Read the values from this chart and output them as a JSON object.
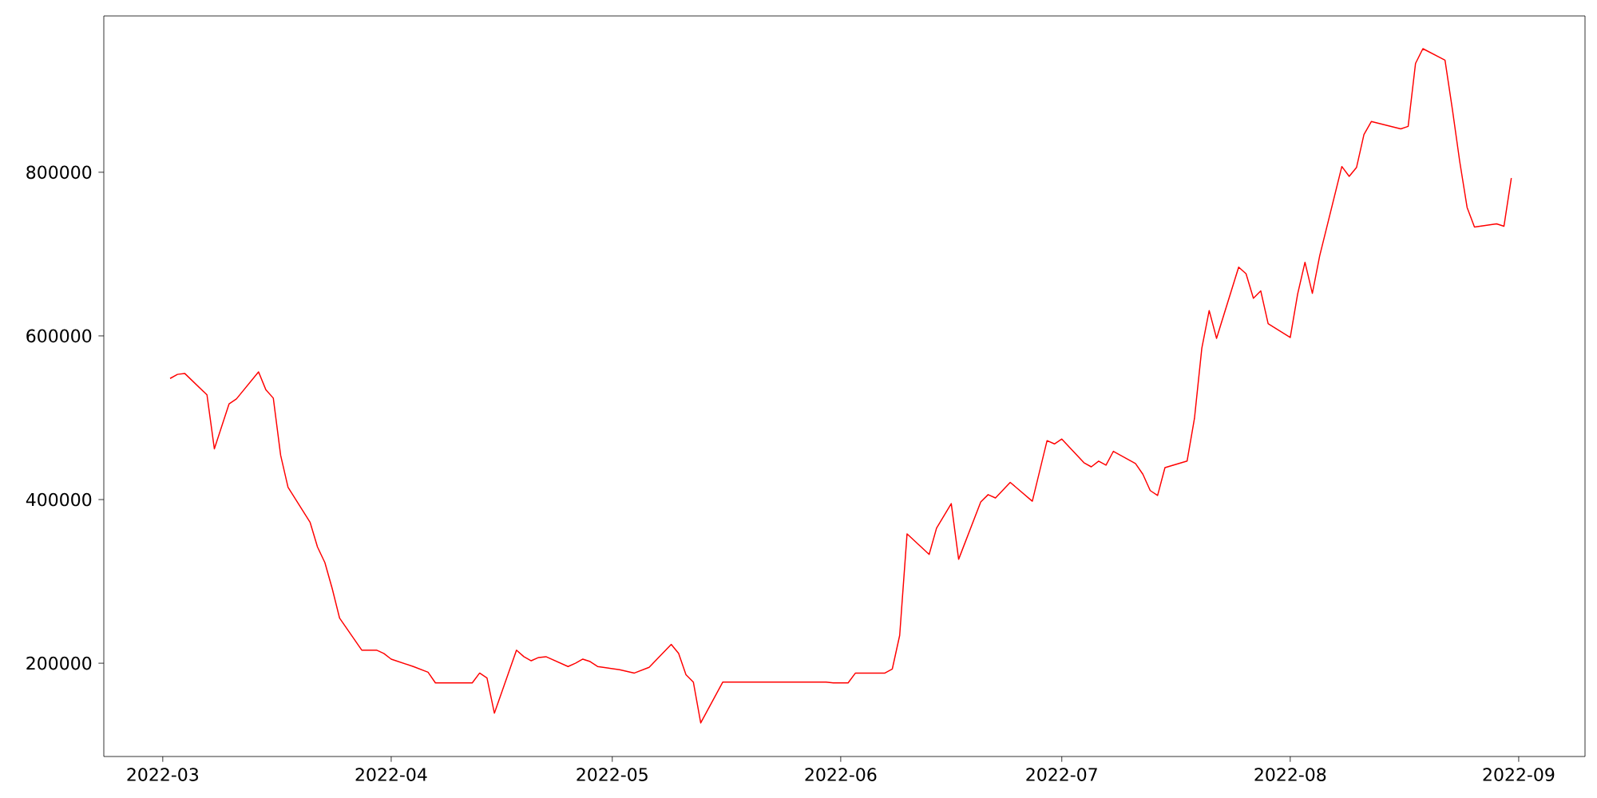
{
  "chart_data": {
    "type": "line",
    "x": [
      "2022-03-02",
      "2022-03-03",
      "2022-03-04",
      "2022-03-07",
      "2022-03-08",
      "2022-03-10",
      "2022-03-11",
      "2022-03-14",
      "2022-03-15",
      "2022-03-16",
      "2022-03-17",
      "2022-03-18",
      "2022-03-21",
      "2022-03-22",
      "2022-03-23",
      "2022-03-24",
      "2022-03-25",
      "2022-03-28",
      "2022-03-30",
      "2022-03-31",
      "2022-04-01",
      "2022-04-04",
      "2022-04-06",
      "2022-04-07",
      "2022-04-12",
      "2022-04-13",
      "2022-04-14",
      "2022-04-15",
      "2022-04-18",
      "2022-04-19",
      "2022-04-20",
      "2022-04-21",
      "2022-04-22",
      "2022-04-25",
      "2022-04-26",
      "2022-04-27",
      "2022-04-28",
      "2022-04-29",
      "2022-05-02",
      "2022-05-04",
      "2022-05-06",
      "2022-05-09",
      "2022-05-10",
      "2022-05-11",
      "2022-05-12",
      "2022-05-13",
      "2022-05-16",
      "2022-05-30",
      "2022-05-31",
      "2022-06-02",
      "2022-06-03",
      "2022-06-07",
      "2022-06-08",
      "2022-06-09",
      "2022-06-10",
      "2022-06-13",
      "2022-06-14",
      "2022-06-16",
      "2022-06-17",
      "2022-06-20",
      "2022-06-21",
      "2022-06-22",
      "2022-06-24",
      "2022-06-27",
      "2022-06-29",
      "2022-06-30",
      "2022-07-01",
      "2022-07-04",
      "2022-07-05",
      "2022-07-06",
      "2022-07-07",
      "2022-07-08",
      "2022-07-11",
      "2022-07-12",
      "2022-07-13",
      "2022-07-14",
      "2022-07-15",
      "2022-07-18",
      "2022-07-19",
      "2022-07-20",
      "2022-07-21",
      "2022-07-22",
      "2022-07-25",
      "2022-07-26",
      "2022-07-27",
      "2022-07-28",
      "2022-07-29",
      "2022-08-01",
      "2022-08-02",
      "2022-08-03",
      "2022-08-04",
      "2022-08-05",
      "2022-08-08",
      "2022-08-09",
      "2022-08-10",
      "2022-08-11",
      "2022-08-12",
      "2022-08-16",
      "2022-08-17",
      "2022-08-18",
      "2022-08-19",
      "2022-08-22",
      "2022-08-23",
      "2022-08-24",
      "2022-08-25",
      "2022-08-26",
      "2022-08-29",
      "2022-08-30",
      "2022-08-31"
    ],
    "series": [
      {
        "color": "#ff0000",
        "values": [
          548000,
          553000,
          554000,
          528000,
          462000,
          517000,
          523000,
          556000,
          534000,
          524000,
          454000,
          415000,
          372000,
          342000,
          323000,
          291000,
          255000,
          216000,
          216000,
          212000,
          205000,
          196000,
          189000,
          176000,
          176000,
          188000,
          182000,
          139000,
          216000,
          208000,
          203000,
          207000,
          208000,
          196000,
          200000,
          205000,
          202000,
          196000,
          192000,
          188000,
          195000,
          223000,
          212000,
          186000,
          177000,
          127000,
          177000,
          177000,
          176000,
          176000,
          188000,
          188000,
          193000,
          234000,
          358000,
          333000,
          365000,
          395000,
          327000,
          397000,
          406000,
          402000,
          421000,
          398000,
          472000,
          468000,
          474000,
          445000,
          440000,
          447000,
          442000,
          459000,
          444000,
          431000,
          411000,
          405000,
          439000,
          447000,
          499000,
          585000,
          631000,
          597000,
          684000,
          676000,
          646000,
          655000,
          615000,
          598000,
          651000,
          690000,
          652000,
          698000,
          807000,
          795000,
          806000,
          846000,
          862000,
          853000,
          856000,
          933000,
          951000,
          937000,
          877000,
          813000,
          757000,
          733000,
          737000,
          734000,
          793000
        ]
      }
    ],
    "xlim": [
      "2022-02-21",
      "2022-09-10"
    ],
    "xticks": [
      {
        "value": "2022-03-01",
        "label": "2022-03"
      },
      {
        "value": "2022-04-01",
        "label": "2022-04"
      },
      {
        "value": "2022-05-01",
        "label": "2022-05"
      },
      {
        "value": "2022-06-01",
        "label": "2022-06"
      },
      {
        "value": "2022-07-01",
        "label": "2022-07"
      },
      {
        "value": "2022-08-01",
        "label": "2022-08"
      },
      {
        "value": "2022-09-01",
        "label": "2022-09"
      }
    ],
    "ylim": [
      86000,
      991000
    ],
    "yticks": [
      200000,
      400000,
      600000,
      800000
    ]
  }
}
